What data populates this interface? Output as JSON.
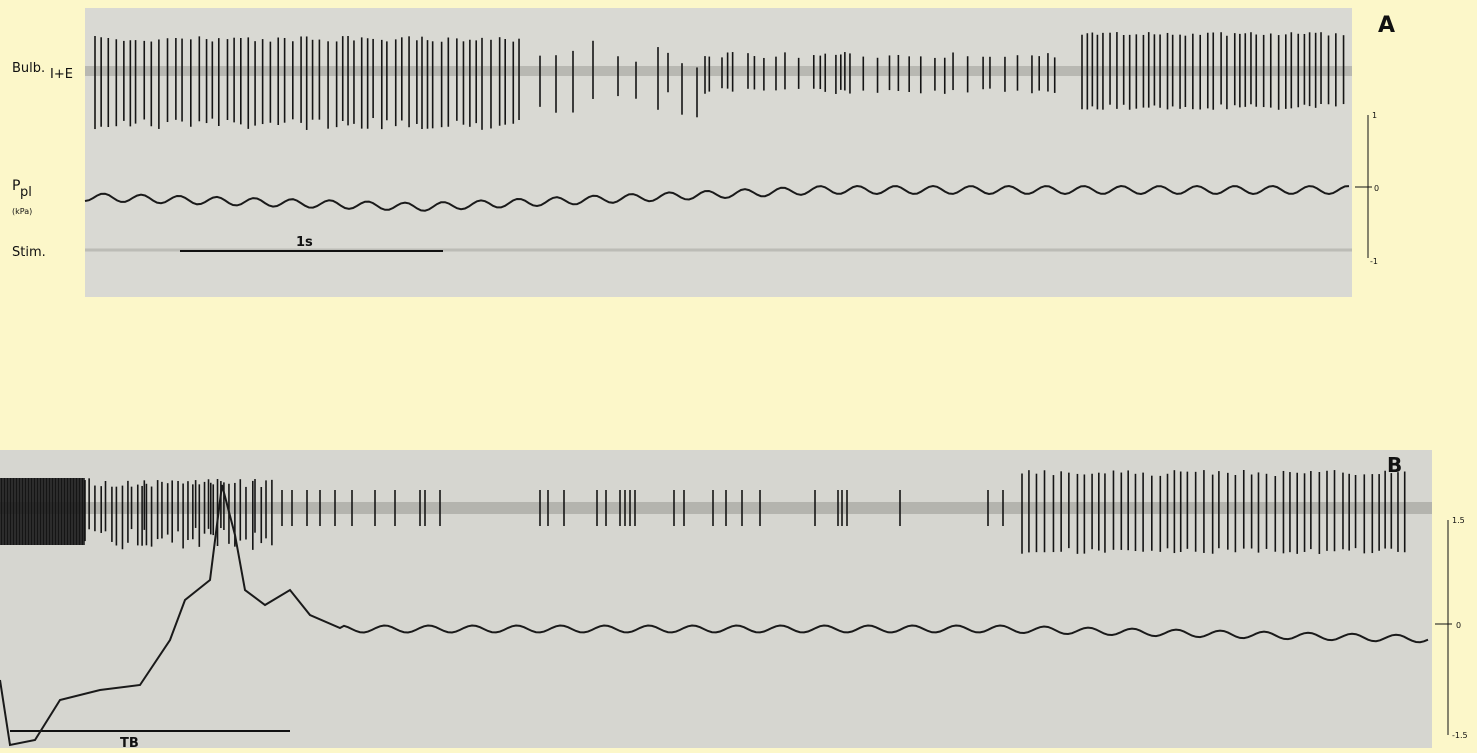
{
  "panel_a": {
    "label": "A",
    "bulb": "Bulb.",
    "bulb_sub": "I+E",
    "ppl": "P",
    "ppl_sub": "pl",
    "ppl_unit": "(kPa)",
    "stim": "Stim.",
    "time_bar": "1s",
    "scale": [
      "1",
      "0",
      "-1"
    ]
  },
  "panel_b": {
    "label": "B",
    "bar_label": "TB",
    "scale": [
      "1.5",
      "0",
      "-1.5"
    ]
  }
}
